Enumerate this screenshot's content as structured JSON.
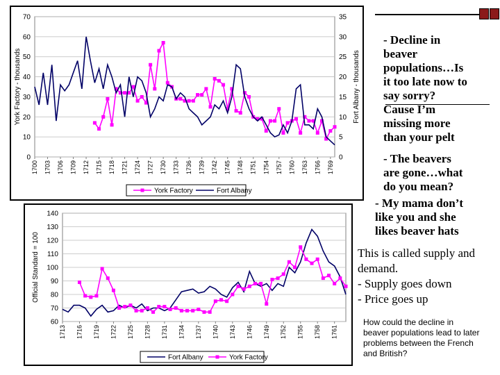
{
  "top_text": {
    "bullet1": [
      "- Decline in",
      "beaver",
      "populations…Is",
      "it too late now to",
      "say sorry?",
      "Cause I’m",
      "missing more",
      "than your pelt"
    ],
    "bullet2": [
      "- The beavers",
      "are gone…what",
      "do you mean?"
    ],
    "bullet3": [
      "- My mama don’t",
      "like you and she",
      "likes beaver hats"
    ]
  },
  "mid_text": {
    "lines": [
      "This is called supply and",
      "demand.",
      "-   Supply goes down",
      "-   Price goes up"
    ]
  },
  "bottom_text": {
    "lines": [
      "How could the decline in",
      "beaver populations lead to later",
      "problems between the French",
      "and British?"
    ]
  },
  "chart_data": [
    {
      "type": "line",
      "ylabel": "York Factory - thousands",
      "y2label": "Fort Albany - thousands",
      "ylim": [
        0,
        70
      ],
      "yticks": [
        0,
        10,
        20,
        30,
        40,
        50,
        60,
        70
      ],
      "y2lim": [
        0,
        35
      ],
      "y2ticks": [
        0,
        5,
        10,
        15,
        20,
        25,
        30,
        35
      ],
      "xlim": [
        1700,
        1770
      ],
      "xticks": [
        "1700",
        "1703",
        "1706",
        "1709",
        "1712",
        "1715",
        "1718",
        "1721",
        "1724",
        "1727",
        "1730",
        "1733",
        "1736",
        "1739",
        "1742",
        "1745",
        "1748",
        "1751",
        "1754",
        "1757",
        "1760",
        "1763",
        "1766",
        "1769"
      ],
      "grid": true,
      "legend_position": "bottom",
      "colors": {
        "york": "#ff00ff",
        "albany": "#000066"
      },
      "series": [
        {
          "name": "York Factory",
          "axis": "left",
          "x": [
            1714,
            1715,
            1716,
            1717,
            1718,
            1719,
            1720,
            1721,
            1722,
            1723,
            1724,
            1725,
            1726,
            1727,
            1728,
            1729,
            1730,
            1731,
            1732,
            1733,
            1734,
            1735,
            1736,
            1737,
            1738,
            1739,
            1740,
            1741,
            1742,
            1743,
            1744,
            1745,
            1746,
            1747,
            1748,
            1749,
            1750,
            1751,
            1752,
            1753,
            1754,
            1755,
            1756,
            1757,
            1758,
            1759,
            1760,
            1761,
            1762,
            1763,
            1764,
            1765,
            1766,
            1767,
            1768,
            1769,
            1770
          ],
          "values": [
            17,
            14,
            20,
            29,
            16,
            34,
            32,
            32,
            32,
            35,
            28,
            30,
            27,
            46,
            34,
            53,
            57,
            37,
            35,
            29,
            29,
            28,
            28,
            28,
            31,
            31,
            34,
            25,
            39,
            38,
            36,
            24,
            34,
            23,
            22,
            32,
            30,
            20,
            19,
            19,
            13,
            18,
            18,
            24,
            12,
            17,
            18,
            19,
            12,
            20,
            18,
            18,
            12,
            18,
            9,
            13,
            15
          ]
        },
        {
          "name": "Fort Albany",
          "axis": "right",
          "x": [
            1700,
            1701,
            1702,
            1703,
            1704,
            1705,
            1706,
            1707,
            1708,
            1709,
            1710,
            1711,
            1712,
            1713,
            1714,
            1715,
            1716,
            1717,
            1718,
            1719,
            1720,
            1721,
            1722,
            1723,
            1724,
            1725,
            1726,
            1727,
            1728,
            1729,
            1730,
            1731,
            1732,
            1733,
            1734,
            1735,
            1736,
            1737,
            1738,
            1739,
            1740,
            1741,
            1742,
            1743,
            1744,
            1745,
            1746,
            1747,
            1748,
            1749,
            1750,
            1751,
            1752,
            1753,
            1754,
            1755,
            1756,
            1757,
            1758,
            1759,
            1760,
            1761,
            1762,
            1763,
            1764,
            1765,
            1766,
            1767,
            1768,
            1769,
            1770
          ],
          "values": [
            17.5,
            13,
            21,
            13,
            23,
            9,
            18,
            16.5,
            18,
            21,
            24,
            17,
            30,
            24,
            18.5,
            22,
            17,
            23,
            20,
            16,
            18,
            10,
            20,
            15,
            20,
            19,
            16,
            10,
            12,
            15,
            14,
            18,
            17.5,
            14.5,
            16,
            15,
            12,
            11,
            10,
            8,
            9,
            10,
            13,
            12,
            14,
            11,
            15,
            23,
            22,
            15,
            12,
            10,
            9,
            10,
            8,
            6,
            5,
            5.5,
            8,
            6,
            9,
            17,
            18,
            8,
            8,
            7,
            12,
            10,
            5,
            4,
            3
          ]
        }
      ]
    },
    {
      "type": "line",
      "ylabel": "Official Standard = 100",
      "ylim": [
        60,
        140
      ],
      "yticks": [
        60,
        70,
        80,
        90,
        100,
        110,
        120,
        130,
        140
      ],
      "xlim": [
        1713,
        1763
      ],
      "xticks": [
        "1713",
        "1716",
        "1719",
        "1722",
        "1725",
        "1728",
        "1731",
        "1734",
        "1737",
        "1740",
        "1743",
        "1746",
        "1749",
        "1752",
        "1755",
        "1758",
        "1761"
      ],
      "grid": true,
      "legend_position": "bottom",
      "colors": {
        "albany": "#000066",
        "york": "#ff00ff"
      },
      "series": [
        {
          "name": "Fort Albany",
          "x": [
            1713,
            1714,
            1715,
            1716,
            1717,
            1718,
            1719,
            1720,
            1721,
            1722,
            1723,
            1724,
            1725,
            1726,
            1727,
            1728,
            1729,
            1730,
            1731,
            1732,
            1733,
            1734,
            1735,
            1736,
            1737,
            1738,
            1739,
            1740,
            1741,
            1742,
            1743,
            1744,
            1745,
            1746,
            1747,
            1748,
            1749,
            1750,
            1751,
            1752,
            1753,
            1754,
            1755,
            1756,
            1757,
            1758,
            1759,
            1760,
            1761,
            1762,
            1763
          ],
          "values": [
            69,
            67,
            72,
            72,
            70,
            64,
            69,
            72,
            67,
            68,
            72,
            70,
            72,
            70,
            73,
            68,
            70,
            70,
            68,
            70,
            76,
            82,
            83,
            84,
            81,
            82,
            86,
            84,
            80,
            78,
            85,
            89,
            82,
            97,
            88,
            86,
            88,
            83,
            88,
            86,
            100,
            96,
            104,
            118,
            128,
            123,
            112,
            104,
            101,
            93,
            80
          ]
        },
        {
          "name": "York Factory",
          "x": [
            1716,
            1717,
            1718,
            1719,
            1720,
            1721,
            1722,
            1723,
            1724,
            1725,
            1726,
            1727,
            1728,
            1729,
            1730,
            1731,
            1732,
            1733,
            1734,
            1735,
            1736,
            1737,
            1738,
            1739,
            1740,
            1741,
            1742,
            1743,
            1744,
            1745,
            1746,
            1747,
            1748,
            1749,
            1750,
            1751,
            1752,
            1753,
            1754,
            1755,
            1756,
            1757,
            1758,
            1759,
            1760,
            1761,
            1762,
            1763
          ],
          "values": [
            89,
            79,
            78,
            79,
            99,
            92,
            83,
            70,
            71,
            72,
            68,
            68,
            70,
            67,
            71,
            71,
            69,
            70,
            68,
            68,
            68,
            69,
            67,
            67,
            75,
            76,
            75,
            80,
            86,
            84,
            86,
            88,
            88,
            73,
            91,
            92,
            95,
            104,
            100,
            115,
            106,
            103,
            106,
            92,
            94,
            88,
            92,
            86
          ]
        }
      ]
    }
  ]
}
